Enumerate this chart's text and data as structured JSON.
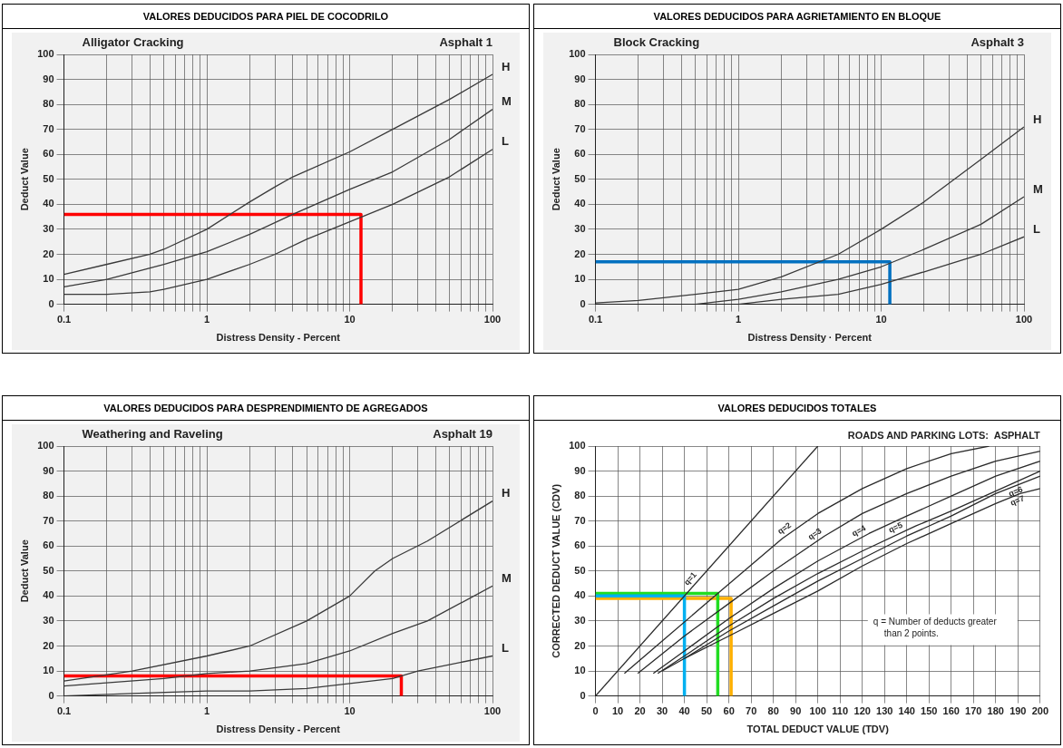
{
  "chart_data": [
    {
      "type": "line",
      "title": "VALORES DEDUCIDOS PARA PIEL DE COCODRILO",
      "subtitle": "Alligator Cracking",
      "annotations": [
        "Asphalt 1"
      ],
      "xlabel": "Distress Density - Percent",
      "ylabel": "Deduct Value",
      "log": "x",
      "grid": true,
      "xlim": [
        0.1,
        100
      ],
      "xticks": [
        0.1,
        {
          "value": 0.2,
          "label": null
        },
        {
          "value": 0.3,
          "label": null
        },
        {
          "value": 0.4,
          "label": null
        },
        {
          "value": 0.5,
          "label": null
        },
        {
          "value": 0.6,
          "label": null
        },
        {
          "value": 0.7,
          "label": null
        },
        {
          "value": 0.8,
          "label": null
        },
        {
          "value": 0.9,
          "label": null
        },
        1,
        {
          "value": 2,
          "label": null
        },
        {
          "value": 3,
          "label": null
        },
        {
          "value": 4,
          "label": null
        },
        {
          "value": 5,
          "label": null
        },
        {
          "value": 6,
          "label": null
        },
        {
          "value": 7,
          "label": null
        },
        {
          "value": 8,
          "label": null
        },
        {
          "value": 9,
          "label": null
        },
        10,
        {
          "value": 20,
          "label": null
        },
        {
          "value": 30,
          "label": null
        },
        {
          "value": 40,
          "label": null
        },
        {
          "value": 50,
          "label": null
        },
        {
          "value": 60,
          "label": null
        },
        {
          "value": 70,
          "label": null
        },
        {
          "value": 80,
          "label": null
        },
        {
          "value": 90,
          "label": null
        },
        100
      ],
      "ylim": [
        0,
        100
      ],
      "yticks": [
        0,
        10,
        20,
        30,
        40,
        50,
        60,
        70,
        80,
        90,
        100
      ],
      "series": [
        {
          "name": "H",
          "color": "#3a3a3a",
          "x": [
            0.1,
            0.2,
            0.4,
            0.5,
            1,
            2,
            3,
            4,
            10,
            20,
            50,
            100
          ],
          "values": [
            12,
            16,
            20,
            22,
            30,
            41,
            47,
            51,
            61,
            70,
            82,
            92
          ]
        },
        {
          "name": "M",
          "color": "#3a3a3a",
          "x": [
            0.1,
            0.2,
            0.5,
            1,
            2,
            4,
            10,
            20,
            50,
            100
          ],
          "values": [
            7,
            10,
            16,
            21,
            28,
            36,
            46,
            53,
            66,
            78
          ]
        },
        {
          "name": "L",
          "color": "#3a3a3a",
          "x": [
            0.1,
            0.2,
            0.4,
            0.5,
            1,
            2,
            3,
            5,
            10,
            20,
            50,
            100
          ],
          "values": [
            4,
            4,
            5,
            6,
            10,
            16,
            20,
            26,
            33,
            40,
            51,
            62
          ]
        },
        {
          "color": "#ff0000",
          "x": [
            0.1,
            12,
            12
          ],
          "values": [
            36,
            36,
            0
          ]
        }
      ]
    },
    {
      "type": "line",
      "title": "VALORES DEDUCIDOS PARA AGRIETAMIENTO EN BLOQUE",
      "subtitle": "Block Cracking",
      "annotations": [
        "Asphalt 3"
      ],
      "xlabel": "Distress Density · Percent",
      "ylabel": "Deduct Value",
      "log": "x",
      "grid": true,
      "xlim": [
        0.1,
        100
      ],
      "xticks": [
        0.1,
        {
          "value": 0.2,
          "label": null
        },
        {
          "value": 0.3,
          "label": null
        },
        {
          "value": 0.4,
          "label": null
        },
        {
          "value": 0.5,
          "label": null
        },
        {
          "value": 0.6,
          "label": null
        },
        {
          "value": 0.7,
          "label": null
        },
        {
          "value": 0.8,
          "label": null
        },
        {
          "value": 0.9,
          "label": null
        },
        1,
        {
          "value": 2,
          "label": null
        },
        {
          "value": 3,
          "label": null
        },
        {
          "value": 4,
          "label": null
        },
        {
          "value": 5,
          "label": null
        },
        {
          "value": 6,
          "label": null
        },
        {
          "value": 7,
          "label": null
        },
        {
          "value": 8,
          "label": null
        },
        {
          "value": 9,
          "label": null
        },
        10,
        {
          "value": 20,
          "label": null
        },
        {
          "value": 30,
          "label": null
        },
        {
          "value": 40,
          "label": null
        },
        {
          "value": 50,
          "label": null
        },
        {
          "value": 60,
          "label": null
        },
        {
          "value": 70,
          "label": null
        },
        {
          "value": 80,
          "label": null
        },
        {
          "value": 90,
          "label": null
        },
        100
      ],
      "ylim": [
        0,
        100
      ],
      "yticks": [
        0,
        10,
        20,
        30,
        40,
        50,
        60,
        70,
        80,
        90,
        100
      ],
      "series": [
        {
          "name": "H",
          "color": "#3a3a3a",
          "x": [
            0.1,
            0.2,
            0.5,
            1,
            2,
            5,
            10,
            20,
            50,
            100
          ],
          "values": [
            0.5,
            1.5,
            4,
            6,
            11,
            20,
            30,
            41,
            58,
            71
          ]
        },
        {
          "name": "M",
          "color": "#3a3a3a",
          "x": [
            0.5,
            1,
            2,
            5,
            10,
            20,
            50,
            100
          ],
          "values": [
            0,
            2,
            5,
            10,
            15,
            22,
            32,
            43
          ]
        },
        {
          "name": "L",
          "color": "#3a3a3a",
          "x": [
            1,
            2,
            5,
            10,
            20,
            50,
            100
          ],
          "values": [
            0,
            2,
            4,
            8,
            13,
            20,
            27
          ]
        },
        {
          "color": "#0070c0",
          "x": [
            0.1,
            11.5,
            11.5
          ],
          "values": [
            17,
            17,
            0
          ]
        }
      ]
    },
    {
      "type": "line",
      "title": "VALORES DEDUCIDOS PARA DESPRENDIMIENTO DE AGREGADOS",
      "subtitle": "Weathering and Raveling",
      "annotations": [
        "Asphalt 19"
      ],
      "xlabel": "Distress Density - Percent",
      "ylabel": "Deduct Value",
      "log": "x",
      "grid": true,
      "xlim": [
        0.1,
        100
      ],
      "xticks": [
        0.1,
        {
          "value": 0.2,
          "label": null
        },
        {
          "value": 0.3,
          "label": null
        },
        {
          "value": 0.4,
          "label": null
        },
        {
          "value": 0.5,
          "label": null
        },
        {
          "value": 0.6,
          "label": null
        },
        {
          "value": 0.7,
          "label": null
        },
        {
          "value": 0.8,
          "label": null
        },
        {
          "value": 0.9,
          "label": null
        },
        1,
        {
          "value": 2,
          "label": null
        },
        {
          "value": 3,
          "label": null
        },
        {
          "value": 4,
          "label": null
        },
        {
          "value": 5,
          "label": null
        },
        {
          "value": 6,
          "label": null
        },
        {
          "value": 7,
          "label": null
        },
        {
          "value": 8,
          "label": null
        },
        {
          "value": 9,
          "label": null
        },
        10,
        {
          "value": 20,
          "label": null
        },
        {
          "value": 30,
          "label": null
        },
        {
          "value": 40,
          "label": null
        },
        {
          "value": 50,
          "label": null
        },
        {
          "value": 60,
          "label": null
        },
        {
          "value": 70,
          "label": null
        },
        {
          "value": 80,
          "label": null
        },
        {
          "value": 90,
          "label": null
        },
        100
      ],
      "ylim": [
        0,
        100
      ],
      "yticks": [
        0,
        10,
        20,
        30,
        40,
        50,
        60,
        70,
        80,
        90,
        100
      ],
      "series": [
        {
          "name": "H",
          "color": "#3a3a3a",
          "x": [
            0.1,
            0.3,
            1,
            2,
            5,
            10,
            15,
            20,
            35,
            100
          ],
          "values": [
            6,
            10,
            16,
            20,
            30,
            40,
            50,
            55,
            62,
            78
          ]
        },
        {
          "name": "M",
          "color": "#3a3a3a",
          "x": [
            0.1,
            0.5,
            1,
            2,
            5,
            10,
            20,
            35,
            100
          ],
          "values": [
            4,
            7,
            9,
            10,
            13,
            18,
            25,
            30,
            44
          ]
        },
        {
          "name": "L",
          "color": "#3a3a3a",
          "x": [
            0.1,
            0.3,
            1,
            2,
            5,
            10,
            20,
            30,
            100
          ],
          "values": [
            0,
            1,
            2,
            2,
            3,
            5,
            7,
            10,
            16
          ]
        },
        {
          "color": "#ff0000",
          "x": [
            0.1,
            23,
            23
          ],
          "values": [
            8,
            8,
            0
          ]
        }
      ]
    },
    {
      "type": "line",
      "title": "VALORES DEDUCIDOS TOTALES",
      "subtitle": "ROADS AND PARKING LOTS:  ASPHALT",
      "annotations": [
        "q = Number of deducts greater than 2 points."
      ],
      "xlabel": "TOTAL DEDUCT VALUE (TDV)",
      "ylabel": "CORRECTED DEDUCT VALUE (CDV)",
      "grid": true,
      "xlim": [
        0,
        200
      ],
      "xticks": [
        0,
        10,
        20,
        30,
        40,
        50,
        60,
        70,
        80,
        90,
        100,
        110,
        120,
        130,
        140,
        150,
        160,
        170,
        180,
        190,
        200
      ],
      "ylim": [
        0,
        100
      ],
      "yticks": [
        0,
        10,
        20,
        30,
        40,
        50,
        60,
        70,
        80,
        90,
        100
      ],
      "series": [
        {
          "name": "q=1",
          "color": "#2a2a2a",
          "x": [
            0,
            100
          ],
          "values": [
            0,
            100
          ]
        },
        {
          "name": "q=2",
          "color": "#2a2a2a",
          "x": [
            13,
            30,
            55,
            84,
            100,
            120,
            140,
            160,
            177
          ],
          "values": [
            9,
            22,
            41,
            63,
            73,
            83,
            91,
            97,
            100
          ]
        },
        {
          "name": "q=3",
          "color": "#2a2a2a",
          "x": [
            19,
            40,
            60,
            80,
            103,
            120,
            140,
            160,
            180,
            200
          ],
          "values": [
            9,
            24,
            37,
            50,
            64,
            73,
            81,
            88,
            94,
            98
          ]
        },
        {
          "name": "q=4",
          "color": "#2a2a2a",
          "x": [
            26,
            40,
            60,
            80,
            100,
            123,
            140,
            160,
            180,
            200
          ],
          "values": [
            9,
            18,
            31,
            43,
            54,
            65,
            72,
            80,
            88,
            94
          ]
        },
        {
          "name": "q=5",
          "color": "#2a2a2a",
          "x": [
            28,
            40,
            60,
            80,
            100,
            120,
            144,
            160,
            180,
            200
          ],
          "values": [
            9,
            16,
            28,
            39,
            49,
            58,
            68,
            74,
            82,
            90
          ]
        },
        {
          "name": "q=6",
          "color": "#2a2a2a",
          "x": [
            30,
            40,
            60,
            80,
            100,
            120,
            140,
            160,
            180,
            200
          ],
          "values": [
            10,
            15,
            26,
            36,
            46,
            55,
            64,
            72,
            81,
            88
          ]
        },
        {
          "name": "q=7",
          "color": "#2a2a2a",
          "x": [
            40,
            60,
            80,
            100,
            120,
            140,
            160,
            180,
            191,
            200
          ],
          "values": [
            15,
            24,
            33,
            42,
            52,
            61,
            69,
            77,
            81,
            83
          ]
        },
        {
          "color": "#00b0f0",
          "x": [
            0,
            40,
            40
          ],
          "values": [
            40,
            40,
            0
          ]
        },
        {
          "color": "#22dd22",
          "x": [
            0,
            55,
            55
          ],
          "values": [
            41,
            41,
            0
          ]
        },
        {
          "color": "#ffb000",
          "x": [
            0,
            61,
            61
          ],
          "values": [
            39,
            39,
            0
          ]
        }
      ]
    }
  ]
}
